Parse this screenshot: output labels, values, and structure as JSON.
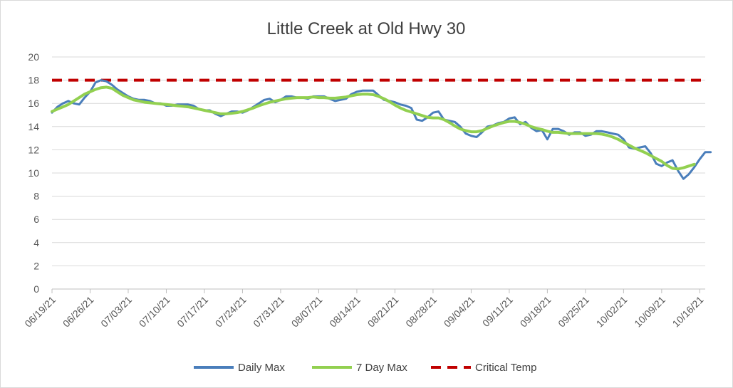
{
  "chart_data": {
    "type": "line",
    "title": "Little Creek at Old Hwy 30",
    "xlabel": "",
    "ylabel": "",
    "ylim": [
      0,
      20
    ],
    "y_ticks": [
      "0",
      "2",
      "4",
      "6",
      "8",
      "10",
      "12",
      "14",
      "16",
      "18",
      "20"
    ],
    "x_tick_labels": [
      "06/19/21",
      "06/26/21",
      "07/03/21",
      "07/10/21",
      "07/17/21",
      "07/24/21",
      "07/31/21",
      "08/07/21",
      "08/14/21",
      "08/21/21",
      "08/28/21",
      "09/04/21",
      "09/11/21",
      "09/18/21",
      "09/25/21",
      "10/02/21",
      "10/09/21",
      "10/16/21"
    ],
    "x_tick_step_days": 7,
    "x_range_days": 120,
    "grid": "horizontal",
    "legend_position": "bottom",
    "series": [
      {
        "name": "Daily Max",
        "color": "#4a7ebb",
        "values": [
          15.2,
          15.7,
          16.0,
          16.2,
          16.0,
          15.9,
          16.5,
          17.0,
          17.8,
          18.0,
          17.9,
          17.6,
          17.2,
          16.9,
          16.6,
          16.4,
          16.3,
          16.3,
          16.2,
          16.0,
          16.0,
          15.8,
          15.8,
          15.9,
          15.9,
          15.9,
          15.8,
          15.5,
          15.4,
          15.4,
          15.1,
          14.9,
          15.1,
          15.3,
          15.3,
          15.2,
          15.4,
          15.7,
          16.0,
          16.3,
          16.4,
          16.1,
          16.3,
          16.6,
          16.6,
          16.5,
          16.5,
          16.4,
          16.6,
          16.6,
          16.6,
          16.4,
          16.2,
          16.3,
          16.4,
          16.8,
          17.0,
          17.1,
          17.1,
          17.1,
          16.7,
          16.3,
          16.2,
          16.1,
          15.9,
          15.8,
          15.6,
          14.6,
          14.5,
          14.8,
          15.2,
          15.3,
          14.6,
          14.5,
          14.4,
          14.0,
          13.4,
          13.2,
          13.1,
          13.5,
          14.0,
          14.1,
          14.3,
          14.4,
          14.7,
          14.8,
          14.2,
          14.4,
          13.9,
          13.6,
          13.7,
          12.9,
          13.8,
          13.8,
          13.6,
          13.3,
          13.5,
          13.5,
          13.2,
          13.3,
          13.6,
          13.6,
          13.5,
          13.4,
          13.3,
          12.9,
          12.2,
          12.1,
          12.2,
          12.3,
          11.7,
          10.8,
          10.6,
          10.9,
          11.1,
          10.2,
          9.5,
          9.9,
          10.5,
          11.2,
          11.8,
          11.8
        ],
        "dash": "none"
      },
      {
        "name": "7 Day Max",
        "color": "#92d050",
        "values": [
          15.3,
          15.5,
          15.7,
          15.9,
          16.2,
          16.5,
          16.8,
          17.0,
          17.2,
          17.35,
          17.4,
          17.3,
          17.0,
          16.7,
          16.5,
          16.3,
          16.2,
          16.1,
          16.05,
          16.0,
          15.95,
          15.9,
          15.85,
          15.8,
          15.75,
          15.7,
          15.6,
          15.5,
          15.4,
          15.3,
          15.2,
          15.1,
          15.1,
          15.15,
          15.2,
          15.3,
          15.45,
          15.6,
          15.8,
          15.95,
          16.1,
          16.2,
          16.3,
          16.4,
          16.45,
          16.5,
          16.5,
          16.5,
          16.55,
          16.5,
          16.5,
          16.45,
          16.45,
          16.5,
          16.55,
          16.65,
          16.75,
          16.8,
          16.8,
          16.75,
          16.6,
          16.4,
          16.15,
          15.85,
          15.6,
          15.4,
          15.25,
          15.1,
          14.95,
          14.8,
          14.75,
          14.75,
          14.6,
          14.35,
          14.05,
          13.8,
          13.65,
          13.55,
          13.55,
          13.65,
          13.85,
          14.05,
          14.2,
          14.35,
          14.45,
          14.45,
          14.35,
          14.2,
          14.0,
          13.85,
          13.75,
          13.6,
          13.5,
          13.5,
          13.45,
          13.4,
          13.4,
          13.4,
          13.4,
          13.4,
          13.4,
          13.35,
          13.25,
          13.1,
          12.9,
          12.65,
          12.4,
          12.15,
          11.95,
          11.75,
          11.5,
          11.25,
          11.0,
          10.65,
          10.4,
          10.35,
          10.45,
          10.6,
          10.75
        ],
        "dash": "none"
      },
      {
        "name": "Critical Temp",
        "color": "#c00000",
        "values": [
          18,
          18
        ],
        "dash": "dashed"
      }
    ]
  }
}
